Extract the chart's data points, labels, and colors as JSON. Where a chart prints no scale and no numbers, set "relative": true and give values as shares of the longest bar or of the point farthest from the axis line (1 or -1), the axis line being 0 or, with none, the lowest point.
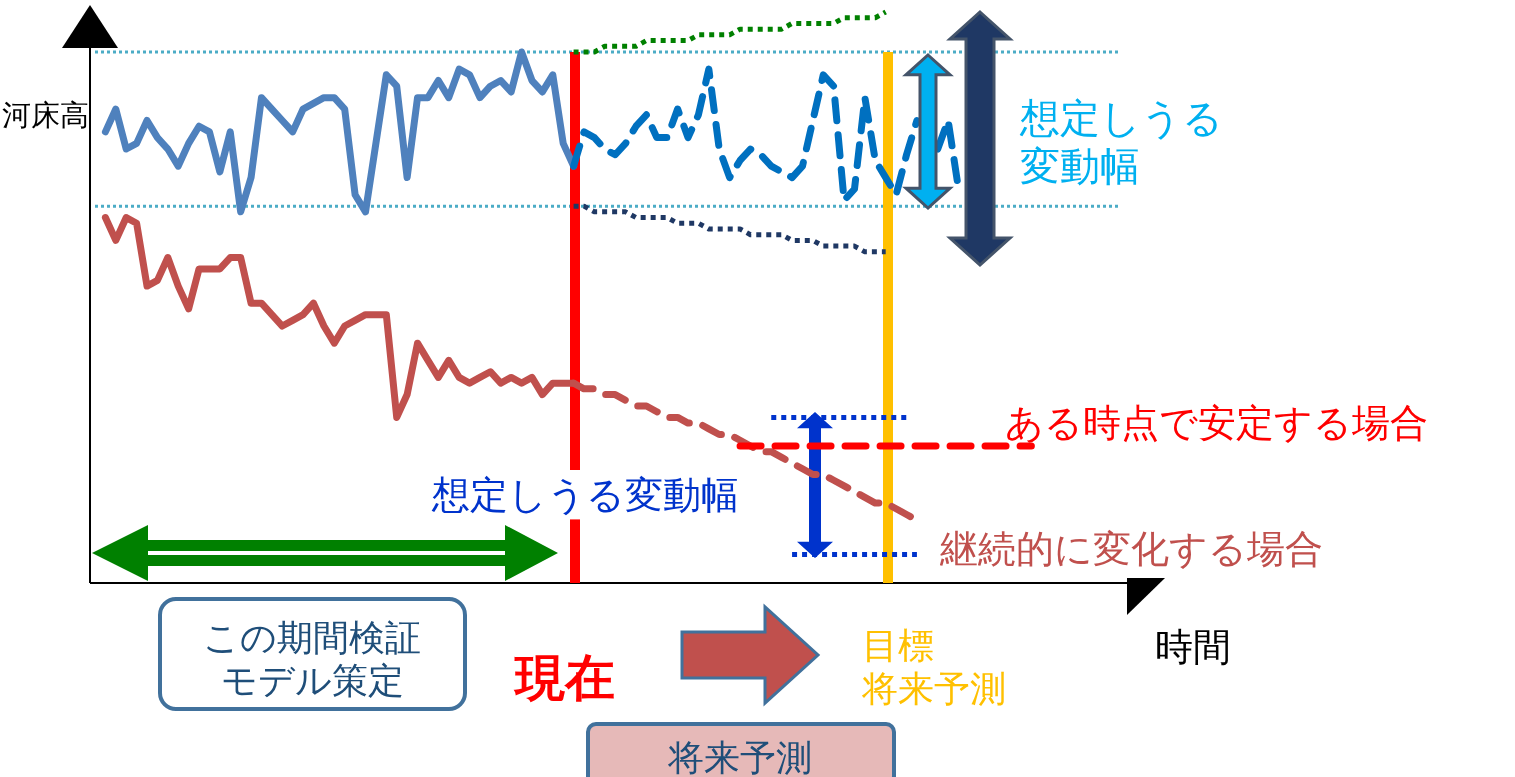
{
  "chart_data": {
    "type": "line",
    "relative": true,
    "xlabel": "時間",
    "ylabel": "河床高",
    "categories": [
      null,
      null,
      null,
      null,
      null,
      null,
      null,
      null,
      null,
      null,
      null,
      null,
      null,
      null,
      null,
      null,
      null,
      null,
      null,
      null,
      null,
      null,
      null,
      null,
      null,
      null,
      null,
      null,
      null,
      null,
      null,
      null,
      null,
      null,
      null,
      null,
      null,
      null,
      null,
      null,
      null,
      null,
      null,
      null,
      null,
      null,
      null,
      null,
      null,
      null,
      null,
      null,
      null,
      null,
      null,
      null,
      null,
      null,
      null,
      null,
      null,
      null,
      null,
      null,
      null,
      null,
      null,
      null,
      null,
      null,
      null,
      null,
      null,
      null,
      null,
      null,
      null,
      null,
      null,
      null,
      null,
      null,
      null,
      null,
      null,
      null,
      null,
      null,
      null,
      null,
      null,
      null,
      null,
      null,
      null,
      null,
      null,
      null,
      null,
      null
    ],
    "series": [
      {
        "color": "#4f81bd",
        "line_style": "solid",
        "values": [
          null,
          0.79,
          0.83,
          0.76,
          0.77,
          0.81,
          0.78,
          0.76,
          0.73,
          0.77,
          0.8,
          0.79,
          0.72,
          0.79,
          0.65,
          0.71,
          0.85,
          0.83,
          0.81,
          0.79,
          0.83,
          0.84,
          0.85,
          0.85,
          0.83,
          0.68,
          0.65,
          0.77,
          0.89,
          0.87,
          0.71,
          0.85,
          0.85,
          0.88,
          0.85,
          0.9,
          0.89,
          0.85,
          0.87,
          0.88,
          0.86,
          0.93,
          0.88,
          0.86,
          0.89,
          0.77,
          0.73,
          null,
          null,
          null,
          null,
          null,
          null,
          null,
          null,
          null,
          null,
          null,
          null,
          null,
          null,
          null,
          null,
          null,
          null,
          null,
          null,
          null,
          null,
          null,
          null,
          null,
          null,
          null,
          null,
          null,
          null,
          null,
          null,
          null,
          null,
          null,
          null,
          null,
          null,
          null,
          null,
          null,
          null,
          null,
          null,
          null,
          null,
          null,
          null,
          null,
          null,
          null,
          null,
          null
        ]
      },
      {
        "color": "#0070c0",
        "line_style": "dashed",
        "values": [
          null,
          null,
          null,
          null,
          null,
          null,
          null,
          null,
          null,
          null,
          null,
          null,
          null,
          null,
          null,
          null,
          null,
          null,
          null,
          null,
          null,
          null,
          null,
          null,
          null,
          null,
          null,
          null,
          null,
          null,
          null,
          null,
          null,
          null,
          null,
          null,
          null,
          null,
          null,
          null,
          null,
          null,
          null,
          null,
          null,
          null,
          0.73,
          0.79,
          0.78,
          0.76,
          0.75,
          0.77,
          0.8,
          0.82,
          0.78,
          0.78,
          0.83,
          0.78,
          0.82,
          0.9,
          0.76,
          0.71,
          0.74,
          0.76,
          0.75,
          0.73,
          0.72,
          0.71,
          0.73,
          0.81,
          0.89,
          0.87,
          0.67,
          0.69,
          0.85,
          0.74,
          0.71,
          0.68,
          0.75,
          0.81,
          null,
          0.76,
          0.81,
          0.69,
          null,
          null,
          null,
          null,
          null,
          null,
          null,
          null,
          null,
          null,
          null,
          null,
          null,
          null,
          null,
          null
        ]
      },
      {
        "color": "#c0504d",
        "line_style": "solid",
        "values": [
          null,
          0.64,
          0.6,
          0.64,
          0.63,
          0.52,
          0.53,
          0.57,
          0.52,
          0.48,
          0.55,
          0.55,
          0.55,
          0.57,
          0.57,
          0.49,
          0.49,
          0.47,
          0.45,
          0.46,
          0.47,
          0.49,
          0.45,
          0.42,
          0.45,
          0.46,
          0.47,
          0.47,
          0.47,
          0.29,
          0.33,
          0.42,
          0.39,
          0.36,
          0.39,
          0.36,
          0.35,
          0.36,
          0.37,
          0.35,
          0.36,
          0.35,
          0.36,
          0.33,
          0.35,
          0.35,
          0.35,
          null,
          null,
          null,
          null,
          null,
          null,
          null,
          null,
          null,
          null,
          null,
          null,
          null,
          null,
          null,
          null,
          null,
          null,
          null,
          null,
          null,
          null,
          null,
          null,
          null,
          null,
          null,
          null,
          null,
          null,
          null,
          null,
          null,
          null,
          null,
          null,
          null,
          null,
          null,
          null,
          null,
          null,
          null,
          null,
          null,
          null,
          null,
          null,
          null,
          null,
          null,
          null,
          null
        ]
      },
      {
        "color": "#c0504d",
        "line_style": "dashed",
        "values": [
          null,
          null,
          null,
          null,
          null,
          null,
          null,
          null,
          null,
          null,
          null,
          null,
          null,
          null,
          null,
          null,
          null,
          null,
          null,
          null,
          null,
          null,
          null,
          null,
          null,
          null,
          null,
          null,
          null,
          null,
          null,
          null,
          null,
          null,
          null,
          null,
          null,
          null,
          null,
          null,
          null,
          null,
          null,
          null,
          null,
          null,
          0.35,
          0.34,
          0.34,
          0.33,
          0.33,
          0.32,
          0.31,
          0.31,
          0.3,
          0.29,
          0.29,
          0.28,
          0.28,
          0.27,
          0.26,
          0.26,
          0.25,
          0.24,
          0.23,
          0.23,
          0.22,
          0.21,
          0.2,
          0.19,
          0.19,
          0.18,
          0.17,
          0.16,
          0.15,
          0.14,
          0.14,
          0.13,
          0.12,
          0.11,
          null,
          null,
          null,
          null,
          null,
          null,
          null,
          null,
          null,
          null,
          null,
          null,
          null,
          null,
          null,
          null,
          null,
          null,
          null,
          null
        ]
      },
      {
        "color": "#ff0000",
        "line_style": "dashed",
        "values": [
          null,
          null,
          null,
          null,
          null,
          null,
          null,
          null,
          null,
          null,
          null,
          null,
          null,
          null,
          null,
          null,
          null,
          null,
          null,
          null,
          null,
          null,
          null,
          null,
          null,
          null,
          null,
          null,
          null,
          null,
          null,
          null,
          null,
          null,
          null,
          null,
          null,
          null,
          null,
          null,
          null,
          null,
          null,
          null,
          null,
          null,
          null,
          null,
          null,
          null,
          null,
          null,
          null,
          null,
          null,
          null,
          null,
          null,
          null,
          null,
          null,
          null,
          0.24,
          0.24,
          0.24,
          0.24,
          0.24,
          0.24,
          0.24,
          0.24,
          0.24,
          0.24,
          0.24,
          0.24,
          0.24,
          0.24,
          0.24,
          0.24,
          0.24,
          0.24,
          0.24,
          0.24,
          0.24,
          0.24,
          0.24,
          0.24,
          0.24,
          0.24,
          0.24,
          0.24,
          0.24,
          null,
          null,
          null,
          null,
          null,
          null,
          null,
          null,
          null
        ]
      },
      {
        "color": "#008000",
        "line_style": "dotted",
        "values": [
          null,
          null,
          null,
          null,
          null,
          null,
          null,
          null,
          null,
          null,
          null,
          null,
          null,
          null,
          null,
          null,
          null,
          null,
          null,
          null,
          null,
          null,
          null,
          null,
          null,
          null,
          null,
          null,
          null,
          null,
          null,
          null,
          null,
          null,
          null,
          null,
          null,
          null,
          null,
          null,
          null,
          null,
          null,
          null,
          null,
          null,
          0.93,
          0.93,
          0.93,
          0.94,
          0.94,
          0.94,
          0.94,
          0.95,
          0.95,
          0.95,
          0.95,
          0.95,
          0.96,
          0.96,
          0.96,
          0.96,
          0.97,
          0.97,
          0.97,
          0.97,
          0.97,
          0.98,
          0.98,
          0.98,
          0.98,
          0.98,
          0.99,
          0.99,
          0.99,
          0.99,
          1,
          null,
          null,
          null,
          null,
          null,
          null,
          null,
          null,
          null,
          null,
          null,
          null,
          null,
          null,
          null,
          null,
          null,
          null,
          null,
          null,
          null,
          null,
          null
        ]
      },
      {
        "color": "#1f3864",
        "line_style": "dotted",
        "values": [
          null,
          null,
          null,
          null,
          null,
          null,
          null,
          null,
          null,
          null,
          null,
          null,
          null,
          null,
          null,
          null,
          null,
          null,
          null,
          null,
          null,
          null,
          null,
          null,
          null,
          null,
          null,
          null,
          null,
          null,
          null,
          null,
          null,
          null,
          null,
          null,
          null,
          null,
          null,
          null,
          null,
          null,
          null,
          null,
          null,
          null,
          0.66,
          0.66,
          0.65,
          0.65,
          0.65,
          0.65,
          0.64,
          0.64,
          0.64,
          0.64,
          0.63,
          0.63,
          0.63,
          0.62,
          0.62,
          0.62,
          0.62,
          0.61,
          0.61,
          0.61,
          0.61,
          0.6,
          0.6,
          0.6,
          0.59,
          0.59,
          0.59,
          0.59,
          0.58,
          0.58,
          0.58,
          null,
          null,
          null,
          null,
          null,
          null,
          null,
          null,
          null,
          null,
          null,
          null,
          null,
          null,
          null,
          null,
          null,
          null,
          null,
          null,
          null,
          null,
          null
        ]
      },
      {
        "color": "#0033cc",
        "line_style": "dotted",
        "values": [
          null,
          null,
          null,
          null,
          null,
          null,
          null,
          null,
          null,
          null,
          null,
          null,
          null,
          null,
          null,
          null,
          null,
          null,
          null,
          null,
          null,
          null,
          null,
          null,
          null,
          null,
          null,
          null,
          null,
          null,
          null,
          null,
          null,
          null,
          null,
          null,
          null,
          null,
          null,
          null,
          null,
          null,
          null,
          null,
          null,
          null,
          null,
          null,
          null,
          null,
          null,
          null,
          null,
          null,
          null,
          null,
          null,
          null,
          null,
          null,
          null,
          null,
          null,
          null,
          null,
          0.29,
          0.29,
          0.29,
          0.29,
          0.29,
          0.29,
          0.29,
          0.29,
          0.29,
          0.29,
          0.29,
          0.29,
          0.29,
          0.29,
          null,
          null,
          null,
          null,
          null,
          null,
          null,
          null,
          null,
          null,
          null,
          null,
          null,
          null,
          null,
          null,
          null,
          null,
          null,
          null,
          null
        ]
      },
      {
        "color": "#0033cc",
        "line_style": "dotted",
        "values": [
          null,
          null,
          null,
          null,
          null,
          null,
          null,
          null,
          null,
          null,
          null,
          null,
          null,
          null,
          null,
          null,
          null,
          null,
          null,
          null,
          null,
          null,
          null,
          null,
          null,
          null,
          null,
          null,
          null,
          null,
          null,
          null,
          null,
          null,
          null,
          null,
          null,
          null,
          null,
          null,
          null,
          null,
          null,
          null,
          null,
          null,
          null,
          null,
          null,
          null,
          null,
          null,
          null,
          null,
          null,
          null,
          null,
          null,
          null,
          null,
          null,
          null,
          null,
          null,
          null,
          null,
          null,
          0.05,
          0.05,
          0.05,
          0.05,
          0.05,
          0.05,
          0.05,
          0.05,
          0.05,
          0.05,
          0.05,
          0.05,
          0.05,
          null,
          null,
          null,
          null,
          null,
          null,
          null,
          null,
          null,
          null,
          null,
          null,
          null,
          null,
          null,
          null,
          null,
          null,
          null,
          null
        ]
      }
    ],
    "ref_lines": [
      {
        "axis": "y",
        "value": 0.93,
        "color": "#4bacc6",
        "line_style": "dotted"
      },
      {
        "axis": "y",
        "value": 0.66,
        "color": "#4bacc6",
        "line_style": "dotted"
      }
    ],
    "annotations": [
      "想定しうる変動幅",
      "ある時点で安定する場合",
      "想定しうる変動幅",
      "継続的に変化する場合",
      "この期間検証モデル策定",
      "将来予測",
      "現在",
      "目標将来予測"
    ]
  }
}
